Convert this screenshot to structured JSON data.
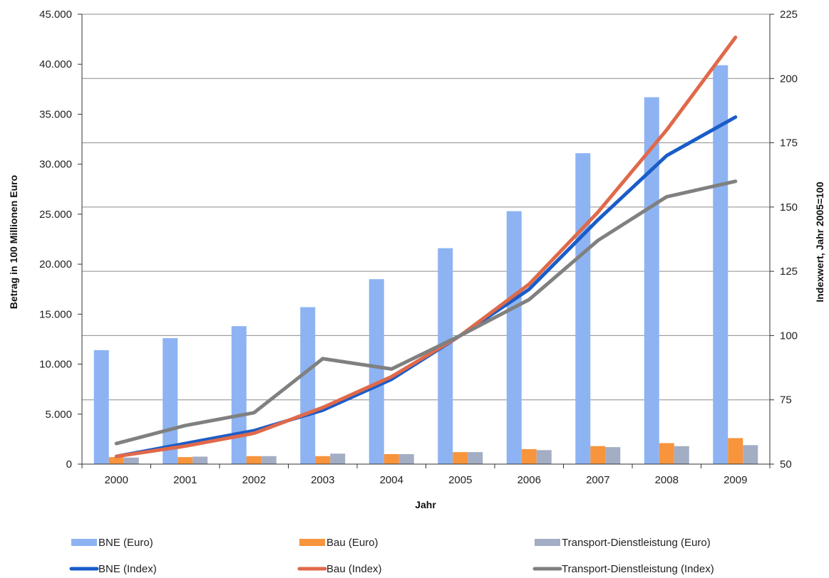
{
  "chart_data": {
    "type": "bar",
    "xlabel": "Jahr",
    "ylabel": "Betrag in 100 Millionen Euro",
    "y2label": "Indexwert, Jahr 2005=100",
    "categories": [
      "2000",
      "2001",
      "2002",
      "2003",
      "2004",
      "2005",
      "2006",
      "2007",
      "2008",
      "2009"
    ],
    "ylim": [
      0,
      45000
    ],
    "yticks": [
      0,
      5000,
      10000,
      15000,
      20000,
      25000,
      30000,
      35000,
      40000,
      45000
    ],
    "ytick_labels": [
      "0",
      "5.000",
      "10.000",
      "15.000",
      "20.000",
      "25.000",
      "30.000",
      "35.000",
      "40.000",
      "45.000"
    ],
    "y2lim": [
      50,
      225
    ],
    "y2ticks": [
      50,
      75,
      100,
      125,
      150,
      175,
      200,
      225
    ],
    "y2tick_labels": [
      "50",
      "75",
      "100",
      "125",
      "150",
      "175",
      "200",
      "225"
    ],
    "legend_position": "bottom",
    "bar_series": [
      {
        "name": "BNE (Euro)",
        "color": "#8db3f2",
        "values": [
          11400,
          12600,
          13800,
          15700,
          18500,
          21600,
          25300,
          31100,
          36700,
          39900
        ]
      },
      {
        "name": "Bau (Euro)",
        "color": "#f7943c",
        "values": [
          700,
          700,
          800,
          800,
          1000,
          1200,
          1500,
          1800,
          2100,
          2600
        ]
      },
      {
        "name": "Transport-Dienstleistung (Euro)",
        "color": "#a3adc4",
        "values": [
          650,
          750,
          800,
          1050,
          1000,
          1200,
          1400,
          1700,
          1800,
          1900
        ]
      }
    ],
    "line_series": [
      {
        "name": "BNE (Index)",
        "color": "#1a5cc8",
        "values": [
          53,
          58,
          63,
          71,
          83,
          100,
          118,
          145,
          170,
          185
        ]
      },
      {
        "name": "Bau (Index)",
        "color": "#e0694a",
        "values": [
          53,
          57,
          62,
          72,
          84,
          100,
          120,
          148,
          180,
          216
        ]
      },
      {
        "name": "Transport-Dienstleistung (Index)",
        "color": "#808080",
        "values": [
          58,
          65,
          70,
          91,
          87,
          100,
          114,
          137,
          154,
          160
        ]
      }
    ]
  }
}
